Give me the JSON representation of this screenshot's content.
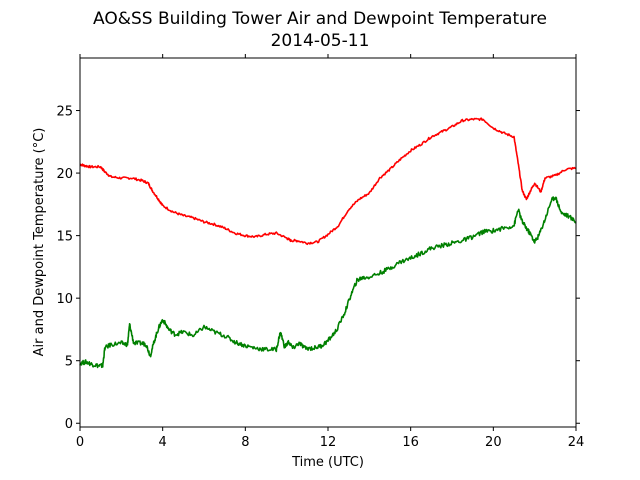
{
  "chart_data": {
    "type": "line",
    "title": "AO&SS Building Tower Air and Dewpoint Temperature",
    "subtitle": "2014-05-11",
    "xlabel": "Time (UTC)",
    "ylabel": "Air and Dewpoint Temperature (°C)",
    "xlim": [
      0,
      24
    ],
    "ylim": [
      -0.3,
      29.2
    ],
    "xticks": [
      0,
      4,
      8,
      12,
      16,
      20,
      24
    ],
    "yticks": [
      0,
      5,
      10,
      15,
      20,
      25
    ],
    "grid": false,
    "legend": "none",
    "series": [
      {
        "color": "#ff0000",
        "x": [
          0,
          0.2,
          0.5,
          1,
          1.2,
          1.5,
          2,
          2.5,
          3,
          3.3,
          3.5,
          3.8,
          4,
          4.5,
          5,
          5.5,
          6,
          6.5,
          7,
          7.5,
          8,
          8.5,
          9,
          9.5,
          10,
          10.2,
          10.5,
          11,
          11.5,
          12,
          12.5,
          13,
          13.5,
          14,
          14.5,
          15,
          15.5,
          16,
          16.5,
          17,
          17.5,
          18,
          18.5,
          19,
          19.5,
          20,
          20.5,
          21,
          21.2,
          21.4,
          21.6,
          21.8,
          22,
          22.3,
          22.5,
          23,
          23.5,
          24
        ],
        "y": [
          20.7,
          20.6,
          20.5,
          20.5,
          20.1,
          19.7,
          19.6,
          19.6,
          19.4,
          19.2,
          18.6,
          17.9,
          17.4,
          16.9,
          16.6,
          16.4,
          16.1,
          15.9,
          15.6,
          15.2,
          15.0,
          14.9,
          15.1,
          15.2,
          14.8,
          14.6,
          14.6,
          14.4,
          14.5,
          15.1,
          15.8,
          17.1,
          17.9,
          18.4,
          19.6,
          20.3,
          21.1,
          21.8,
          22.3,
          22.9,
          23.3,
          23.7,
          24.2,
          24.3,
          24.3,
          23.6,
          23.2,
          22.9,
          20.8,
          18.6,
          17.9,
          18.6,
          19.2,
          18.5,
          19.6,
          19.8,
          20.3,
          20.4
        ]
      },
      {
        "color": "#008000",
        "x": [
          0,
          0.3,
          0.6,
          0.9,
          1.1,
          1.2,
          1.5,
          2,
          2.3,
          2.4,
          2.6,
          3,
          3.2,
          3.4,
          3.6,
          3.8,
          4,
          4.3,
          4.6,
          5,
          5.5,
          6,
          6.5,
          7,
          7.5,
          8,
          8.5,
          9,
          9.5,
          9.7,
          9.9,
          10.1,
          10.3,
          10.6,
          10.9,
          11.3,
          11.7,
          12,
          12.4,
          12.8,
          13.1,
          13.4,
          13.6,
          14,
          14.5,
          15,
          15.5,
          16,
          16.5,
          17,
          17.5,
          18,
          18.5,
          19,
          19.5,
          20,
          20.5,
          21,
          21.2,
          21.4,
          21.6,
          21.8,
          22,
          22.2,
          22.5,
          22.8,
          23,
          23.3,
          23.6,
          24
        ],
        "y": [
          4.8,
          4.9,
          4.7,
          4.6,
          4.6,
          6.0,
          6.3,
          6.4,
          6.3,
          7.9,
          6.4,
          6.4,
          6.3,
          5.4,
          6.6,
          7.6,
          8.3,
          7.5,
          7.1,
          7.3,
          7.0,
          7.7,
          7.3,
          7.0,
          6.5,
          6.2,
          6.0,
          5.9,
          5.9,
          7.3,
          6.1,
          6.5,
          6.0,
          6.4,
          6.0,
          6.0,
          6.2,
          6.6,
          7.4,
          8.8,
          10.2,
          11.4,
          11.6,
          11.7,
          12.0,
          12.4,
          12.9,
          13.2,
          13.6,
          14.0,
          14.2,
          14.4,
          14.6,
          14.9,
          15.3,
          15.4,
          15.6,
          15.8,
          17.1,
          16.1,
          15.6,
          15.1,
          14.5,
          15.0,
          16.3,
          17.8,
          18.1,
          16.8,
          16.6,
          16.1
        ]
      }
    ]
  }
}
